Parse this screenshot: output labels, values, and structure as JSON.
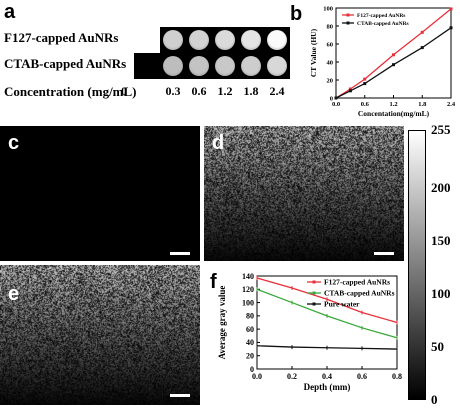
{
  "panel_a": {
    "label": "a",
    "row1_label": "F127-capped AuNRs",
    "row2_label": "CTAB-capped AuNRs",
    "conc_label": "Concentration (mg/mL)",
    "concentrations": [
      "0",
      "0.3",
      "0.6",
      "1.2",
      "1.8",
      "2.4"
    ],
    "row1_grays": [
      "#cfcfcf",
      "#cfcfcf",
      "#d2d2d2",
      "#dadada",
      "#e4e4e4",
      "#fafafa"
    ],
    "row2_grays": [
      "#000000",
      "#bdbdbd",
      "#c3c3c3",
      "#c8c8c8",
      "#cdcdcd",
      "#d8d8d8"
    ]
  },
  "panel_b": {
    "label": "b",
    "chart_data": {
      "type": "line",
      "xlabel": "Concentation(mg/mL)",
      "ylabel": "CT Value (HU)",
      "xlim": [
        0,
        2.4
      ],
      "ylim": [
        0,
        100
      ],
      "xticks": [
        "0.0",
        "0.6",
        "1.2",
        "1.8",
        "2.4"
      ],
      "yticks": [
        "0",
        "20",
        "40",
        "60",
        "80",
        "100"
      ],
      "x": [
        0,
        0.3,
        0.6,
        1.2,
        1.8,
        2.4
      ],
      "series": [
        {
          "name": "F127-capped AuNRs",
          "color": "#e8303a",
          "values": [
            0,
            10,
            21,
            48,
            73,
            99
          ]
        },
        {
          "name": "CTAB-capped AuNRs",
          "color": "#111111",
          "values": [
            0,
            8,
            16,
            37,
            56,
            78
          ]
        }
      ],
      "legend": "top-left"
    }
  },
  "panel_c": {
    "label": "c"
  },
  "panel_d": {
    "label": "d"
  },
  "panel_e": {
    "label": "e"
  },
  "colorbar": {
    "ticks": [
      "255",
      "200",
      "150",
      "100",
      "50",
      "0"
    ],
    "range": [
      0,
      255
    ]
  },
  "panel_f": {
    "label": "f",
    "chart_data": {
      "type": "line",
      "xlabel": "Depth (mm)",
      "ylabel": "Average gray value",
      "xlim": [
        0,
        0.8
      ],
      "ylim": [
        0,
        140
      ],
      "xticks": [
        "0.0",
        "0.2",
        "0.4",
        "0.6",
        "0.8"
      ],
      "yticks": [
        "0",
        "20",
        "40",
        "60",
        "80",
        "100",
        "120",
        "140"
      ],
      "x": [
        0,
        0.2,
        0.4,
        0.6,
        0.8
      ],
      "series": [
        {
          "name": "F127-capped AuNRs",
          "color": "#e8303a",
          "values": [
            137,
            122,
            105,
            85,
            70
          ]
        },
        {
          "name": "CTAB-capped AuNRs",
          "color": "#3aa83a",
          "values": [
            120,
            100,
            80,
            62,
            47
          ]
        },
        {
          "name": "Pure water",
          "color": "#111111",
          "values": [
            35,
            33,
            32,
            31,
            30
          ]
        }
      ],
      "legend": "top-right"
    }
  }
}
